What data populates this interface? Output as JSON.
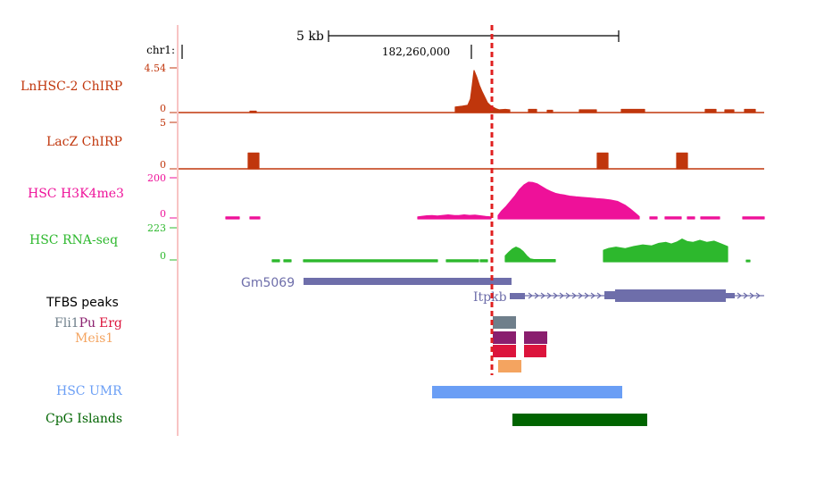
{
  "colors": {
    "divider": "#f08a8a",
    "chirp": "#c0360c",
    "lacz": "#c0360c",
    "h3k4me3": "#ee1199",
    "rnaseq": "#2db82d",
    "gene": "#6e6eaa",
    "fli1": "#6f7f8b",
    "pu": "#8a1e6e",
    "erg": "#dc143c",
    "meis1": "#f4a460",
    "umr": "#6a9ef5",
    "cpg": "#006400",
    "marker": "#e02020",
    "text": "#000000"
  },
  "scale": {
    "label": "5 kb"
  },
  "position": {
    "chrom": "chr1:",
    "coord": "182,260,000"
  },
  "chart_data": {
    "type": "area",
    "tracks": [
      {
        "name": "LnHSC-2 ChIRP",
        "max": "4.54",
        "min": "0",
        "color": "#c0360c",
        "ymax": 4.54,
        "segments": [
          [
            [
              280,
              0.05
            ],
            [
              287,
              0.05
            ]
          ],
          [
            [
              510,
              0.5
            ],
            [
              518,
              0.6
            ],
            [
              524,
              0.7
            ],
            [
              527,
              1.4
            ],
            [
              529,
              2.9
            ],
            [
              531,
              4.54
            ],
            [
              534,
              3.8
            ],
            [
              537,
              2.9
            ],
            [
              540,
              2.2
            ],
            [
              543,
              1.6
            ],
            [
              546,
              1.0
            ],
            [
              549,
              0.7
            ],
            [
              552,
              0.5
            ],
            [
              556,
              0.3
            ],
            [
              559,
              0.2
            ],
            [
              566,
              0.25
            ],
            [
              571,
              0.2
            ]
          ],
          [
            [
              592,
              0.25
            ],
            [
              601,
              0.25
            ]
          ],
          [
            [
              613,
              0.15
            ],
            [
              619,
              0.15
            ]
          ],
          [
            [
              649,
              0.2
            ],
            [
              668,
              0.2
            ]
          ],
          [
            [
              696,
              0.25
            ],
            [
              722,
              0.25
            ]
          ],
          [
            [
              790,
              0.25
            ],
            [
              802,
              0.25
            ]
          ],
          [
            [
              812,
              0.2
            ],
            [
              822,
              0.2
            ]
          ],
          [
            [
              834,
              0.25
            ],
            [
              846,
              0.25
            ]
          ]
        ]
      },
      {
        "name": "LacZ ChIRP",
        "max": "5",
        "min": "0",
        "color": "#c0360c",
        "ymax": 5,
        "segments": [
          [
            [
              278,
              1.6
            ],
            [
              290,
              1.6
            ]
          ],
          [
            [
              669,
              1.6
            ],
            [
              681,
              1.6
            ]
          ],
          [
            [
              758,
              1.6
            ],
            [
              770,
              1.6
            ]
          ]
        ]
      },
      {
        "name": "HSC H3K4me3",
        "max": "200",
        "min": "0",
        "color": "#ee1199",
        "ymax": 200,
        "segments": [
          [
            [
              253,
              6
            ],
            [
              268,
              6
            ]
          ],
          [
            [
              280,
              6
            ],
            [
              291,
              6
            ]
          ],
          [
            [
              468,
              6
            ],
            [
              473,
              9
            ],
            [
              478,
              12
            ],
            [
              484,
              13
            ],
            [
              490,
              11
            ],
            [
              496,
              14
            ],
            [
              502,
              17
            ],
            [
              508,
              14
            ],
            [
              514,
              13
            ],
            [
              520,
              17
            ],
            [
              526,
              14
            ],
            [
              532,
              16
            ],
            [
              538,
              12
            ],
            [
              544,
              8
            ],
            [
              550,
              6
            ]
          ],
          [
            [
              558,
              14
            ],
            [
              562,
              40
            ],
            [
              567,
              65
            ],
            [
              572,
              95
            ],
            [
              577,
              125
            ],
            [
              582,
              160
            ],
            [
              587,
              185
            ],
            [
              592,
              200
            ],
            [
              597,
              198
            ],
            [
              602,
              190
            ],
            [
              607,
              175
            ],
            [
              612,
              160
            ],
            [
              617,
              148
            ],
            [
              622,
              138
            ],
            [
              627,
              132
            ],
            [
              632,
              128
            ],
            [
              638,
              122
            ],
            [
              645,
              118
            ],
            [
              652,
              115
            ],
            [
              660,
              112
            ],
            [
              668,
              108
            ],
            [
              676,
              105
            ],
            [
              684,
              100
            ],
            [
              692,
              92
            ],
            [
              700,
              72
            ],
            [
              706,
              50
            ],
            [
              712,
              25
            ],
            [
              716,
              8
            ]
          ],
          [
            [
              728,
              6
            ],
            [
              736,
              6
            ]
          ],
          [
            [
              745,
              6
            ],
            [
              763,
              6
            ]
          ],
          [
            [
              770,
              6
            ],
            [
              778,
              6
            ]
          ],
          [
            [
              785,
              6
            ],
            [
              806,
              6
            ]
          ],
          [
            [
              832,
              6
            ],
            [
              856,
              6
            ]
          ]
        ]
      },
      {
        "name": "HSC RNA-seq",
        "max": "223",
        "min": "0",
        "color": "#2db82d",
        "ymax": 223,
        "segments": [
          [
            [
              305,
              8
            ],
            [
              313,
              8
            ]
          ],
          [
            [
              318,
              8
            ],
            [
              326,
              8
            ]
          ],
          [
            [
              340,
              8
            ],
            [
              490,
              8
            ]
          ],
          [
            [
              500,
              8
            ],
            [
              536,
              8
            ]
          ],
          [
            [
              538,
              8
            ],
            [
              546,
              8
            ]
          ],
          [
            [
              566,
              40
            ],
            [
              570,
              70
            ],
            [
              574,
              95
            ],
            [
              578,
              110
            ],
            [
              582,
              98
            ],
            [
              586,
              75
            ],
            [
              590,
              40
            ],
            [
              594,
              15
            ],
            [
              598,
              10
            ],
            [
              622,
              10
            ]
          ],
          [
            [
              676,
              85
            ],
            [
              682,
              100
            ],
            [
              690,
              110
            ],
            [
              700,
              98
            ],
            [
              710,
              115
            ],
            [
              720,
              128
            ],
            [
              730,
              120
            ],
            [
              738,
              140
            ],
            [
              746,
              148
            ],
            [
              752,
              135
            ],
            [
              758,
              150
            ],
            [
              764,
              175
            ],
            [
              770,
              155
            ],
            [
              776,
              148
            ],
            [
              784,
              165
            ],
            [
              792,
              148
            ],
            [
              800,
              158
            ],
            [
              808,
              135
            ],
            [
              815,
              115
            ]
          ],
          [
            [
              836,
              6
            ],
            [
              840,
              6
            ]
          ]
        ]
      }
    ],
    "genes": [
      {
        "name": "Gm5069"
      },
      {
        "name": "Itpkb"
      }
    ],
    "tfbs": {
      "title": "TFBS peaks",
      "factors": [
        {
          "name": "Fli1",
          "color": "#6f7f8b"
        },
        {
          "name": "Pu",
          "color": "#8a1e6e"
        },
        {
          "name": "Erg",
          "color": "#dc143c"
        },
        {
          "name": "Meis1",
          "color": "#f4a460"
        }
      ]
    },
    "regions": [
      {
        "name": "HSC UMR",
        "color": "#6a9ef5"
      },
      {
        "name": "CpG Islands",
        "color": "#006400"
      }
    ]
  }
}
